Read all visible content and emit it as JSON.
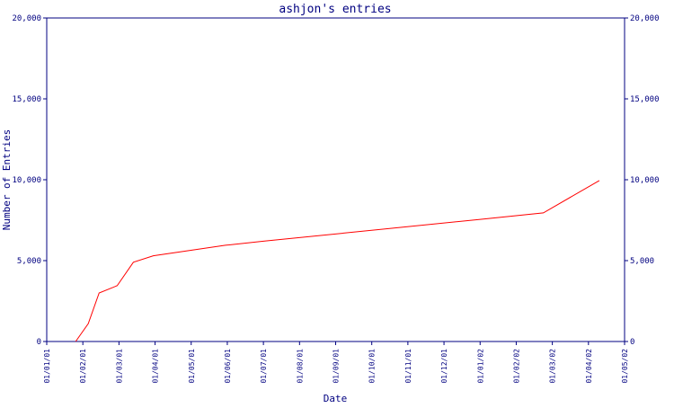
{
  "chart_data": {
    "type": "line",
    "title": "ashjon's entries",
    "xlabel": "Date",
    "ylabel": "Number of Entries",
    "ylim": [
      0,
      20000
    ],
    "y_ticks": [
      "0",
      "5,000",
      "10,000",
      "15,000",
      "20,000"
    ],
    "y_tick_values": [
      0,
      5000,
      10000,
      15000,
      20000
    ],
    "x_ticks": [
      "01/01/01",
      "01/02/01",
      "01/03/01",
      "01/04/01",
      "01/05/01",
      "01/06/01",
      "01/07/01",
      "01/08/01",
      "01/09/01",
      "01/10/01",
      "01/11/01",
      "01/12/01",
      "01/01/02",
      "01/02/02",
      "01/03/02",
      "01/04/02",
      "01/05/02"
    ],
    "x_tick_index": [
      0,
      1,
      2,
      3,
      4,
      5,
      6,
      7,
      8,
      9,
      10,
      11,
      12,
      13,
      14,
      15,
      16
    ],
    "grid": false,
    "series": [
      {
        "color": "#ff0000",
        "x": [
          0.8,
          1.15,
          1.45,
          1.95,
          2.4,
          2.95,
          4.95,
          6.0,
          12.0,
          13.75,
          15.3
        ],
        "values": [
          0,
          1100,
          3000,
          3450,
          4900,
          5300,
          5950,
          6200,
          7550,
          7950,
          9950
        ]
      }
    ],
    "colors": {
      "axis": "#000080",
      "line": "#ff0000",
      "background": "#ffffff"
    }
  }
}
